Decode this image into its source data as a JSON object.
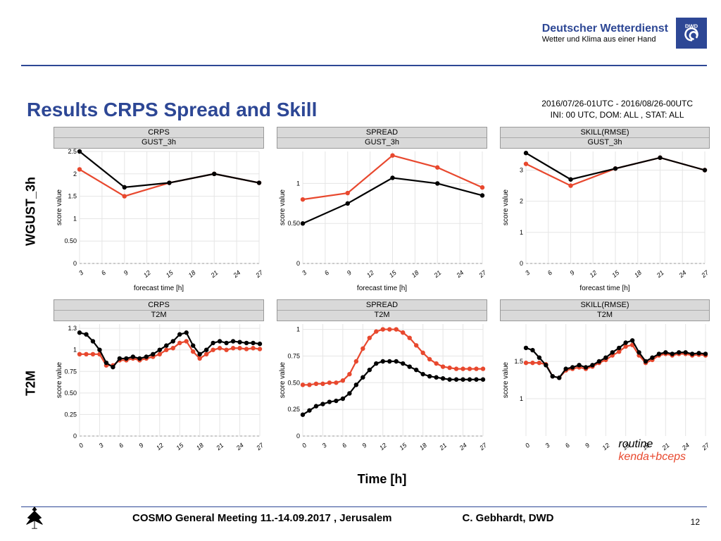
{
  "brand": {
    "title": "Deutscher Wetterdienst",
    "subtitle": "Wetter und Klima aus einer Hand",
    "logo_text": "DWD",
    "logo_bg": "#2d4795",
    "logo_fg": "#ffffff"
  },
  "title": "Results CRPS Spread and Skill",
  "subtitle_line1": "2016/07/26-01UTC - 2016/08/26-00UTC",
  "subtitle_line2": "INI: 00 UTC, DOM:  ALL , STAT: ALL",
  "row_labels": [
    "WGUST_3h",
    "T2M"
  ],
  "time_axis_label": "Time [h]",
  "panel_headers": {
    "col1": "CRPS",
    "col2": "SPREAD",
    "col3": "SKILL(RMSE)",
    "row1_sub": "GUST_3h",
    "row2_sub": "T2M"
  },
  "ylabel": "score value",
  "xlabel": "forecast time [h]",
  "series_colors": {
    "routine": "#000000",
    "kenda": "#e8482e"
  },
  "legend": {
    "routine": "routine",
    "kenda": "kenda+bceps"
  },
  "panels": {
    "r1c1": {
      "xlim": [
        3,
        27
      ],
      "ylim": [
        0,
        2.5
      ],
      "yticks": [
        0.0,
        0.5,
        1.0,
        1.5,
        2.0,
        2.5
      ],
      "xticks": [
        3,
        6,
        9,
        12,
        15,
        18,
        21,
        24,
        27
      ],
      "routine": {
        "x": [
          3,
          9,
          15,
          21,
          27
        ],
        "y": [
          2.5,
          1.7,
          1.8,
          2.0,
          1.8
        ]
      },
      "kenda": {
        "x": [
          3,
          9,
          15,
          21,
          27
        ],
        "y": [
          2.1,
          1.5,
          1.8,
          2.0,
          1.8
        ]
      }
    },
    "r1c2": {
      "xlim": [
        3,
        27
      ],
      "ylim": [
        0,
        1.4
      ],
      "yticks": [
        0.0,
        0.5,
        1.0
      ],
      "xticks": [
        3,
        6,
        9,
        12,
        15,
        18,
        21,
        24,
        27
      ],
      "routine": {
        "x": [
          3,
          9,
          15,
          21,
          27
        ],
        "y": [
          0.5,
          0.75,
          1.07,
          1.0,
          0.85
        ]
      },
      "kenda": {
        "x": [
          3,
          9,
          15,
          21,
          27
        ],
        "y": [
          0.8,
          0.88,
          1.35,
          1.2,
          0.95
        ]
      }
    },
    "r1c3": {
      "xlim": [
        3,
        27
      ],
      "ylim": [
        0,
        3.6
      ],
      "yticks": [
        0,
        1,
        2,
        3
      ],
      "xticks": [
        3,
        6,
        9,
        12,
        15,
        18,
        21,
        24,
        27
      ],
      "routine": {
        "x": [
          3,
          9,
          15,
          21,
          27
        ],
        "y": [
          3.55,
          2.7,
          3.05,
          3.4,
          3.0
        ]
      },
      "kenda": {
        "x": [
          3,
          9,
          15,
          21,
          27
        ],
        "y": [
          3.2,
          2.5,
          3.05,
          3.4,
          3.0
        ]
      }
    },
    "r2c1": {
      "xlim": [
        0,
        27
      ],
      "ylim": [
        0,
        1.3
      ],
      "yticks": [
        0.0,
        0.25,
        0.5,
        0.75,
        1.0,
        1.25
      ],
      "xticks": [
        0,
        3,
        6,
        9,
        12,
        15,
        18,
        21,
        24,
        27
      ],
      "routine": {
        "x": [
          0,
          1,
          2,
          3,
          4,
          5,
          6,
          7,
          8,
          9,
          10,
          11,
          12,
          13,
          14,
          15,
          16,
          17,
          18,
          19,
          20,
          21,
          22,
          23,
          24,
          25,
          26,
          27
        ],
        "y": [
          1.2,
          1.18,
          1.1,
          1.0,
          0.85,
          0.8,
          0.9,
          0.9,
          0.92,
          0.9,
          0.92,
          0.95,
          1.0,
          1.05,
          1.1,
          1.18,
          1.2,
          1.05,
          0.95,
          1.0,
          1.08,
          1.1,
          1.08,
          1.1,
          1.09,
          1.08,
          1.08,
          1.07
        ]
      },
      "kenda": {
        "x": [
          0,
          1,
          2,
          3,
          4,
          5,
          6,
          7,
          8,
          9,
          10,
          11,
          12,
          13,
          14,
          15,
          16,
          17,
          18,
          19,
          20,
          21,
          22,
          23,
          24,
          25,
          26,
          27
        ],
        "y": [
          0.95,
          0.95,
          0.95,
          0.95,
          0.82,
          0.82,
          0.88,
          0.88,
          0.9,
          0.88,
          0.9,
          0.92,
          0.95,
          1.0,
          1.02,
          1.08,
          1.1,
          0.98,
          0.9,
          0.95,
          1.0,
          1.02,
          1.0,
          1.02,
          1.02,
          1.01,
          1.02,
          1.01
        ]
      }
    },
    "r2c2": {
      "xlim": [
        0,
        27
      ],
      "ylim": [
        0,
        1.05
      ],
      "yticks": [
        0.0,
        0.25,
        0.5,
        0.75,
        1.0
      ],
      "xticks": [
        0,
        3,
        6,
        9,
        12,
        15,
        18,
        21,
        24,
        27
      ],
      "routine": {
        "x": [
          0,
          1,
          2,
          3,
          4,
          5,
          6,
          7,
          8,
          9,
          10,
          11,
          12,
          13,
          14,
          15,
          16,
          17,
          18,
          19,
          20,
          21,
          22,
          23,
          24,
          25,
          26,
          27
        ],
        "y": [
          0.2,
          0.24,
          0.28,
          0.3,
          0.32,
          0.33,
          0.35,
          0.4,
          0.48,
          0.55,
          0.62,
          0.68,
          0.7,
          0.7,
          0.7,
          0.68,
          0.65,
          0.62,
          0.58,
          0.56,
          0.55,
          0.54,
          0.53,
          0.53,
          0.53,
          0.53,
          0.53,
          0.53
        ]
      },
      "kenda": {
        "x": [
          0,
          1,
          2,
          3,
          4,
          5,
          6,
          7,
          8,
          9,
          10,
          11,
          12,
          13,
          14,
          15,
          16,
          17,
          18,
          19,
          20,
          21,
          22,
          23,
          24,
          25,
          26,
          27
        ],
        "y": [
          0.48,
          0.48,
          0.49,
          0.49,
          0.5,
          0.5,
          0.52,
          0.58,
          0.7,
          0.82,
          0.92,
          0.98,
          1.0,
          1.0,
          1.0,
          0.97,
          0.92,
          0.85,
          0.78,
          0.72,
          0.68,
          0.65,
          0.64,
          0.63,
          0.63,
          0.63,
          0.63,
          0.63
        ]
      }
    },
    "r2c3": {
      "xlim": [
        0,
        27
      ],
      "ylim": [
        0.5,
        2.0
      ],
      "yticks": [
        1.0,
        1.5
      ],
      "xticks": [
        0,
        3,
        6,
        9,
        12,
        15,
        18,
        21,
        24,
        27
      ],
      "routine": {
        "x": [
          0,
          1,
          2,
          3,
          4,
          5,
          6,
          7,
          8,
          9,
          10,
          11,
          12,
          13,
          14,
          15,
          16,
          17,
          18,
          19,
          20,
          21,
          22,
          23,
          24,
          25,
          26,
          27
        ],
        "y": [
          1.68,
          1.65,
          1.55,
          1.45,
          1.3,
          1.28,
          1.4,
          1.42,
          1.45,
          1.42,
          1.45,
          1.5,
          1.55,
          1.62,
          1.68,
          1.75,
          1.78,
          1.62,
          1.5,
          1.55,
          1.6,
          1.62,
          1.6,
          1.62,
          1.62,
          1.6,
          1.61,
          1.6
        ]
      },
      "kenda": {
        "x": [
          0,
          1,
          2,
          3,
          4,
          5,
          6,
          7,
          8,
          9,
          10,
          11,
          12,
          13,
          14,
          15,
          16,
          17,
          18,
          19,
          20,
          21,
          22,
          23,
          24,
          25,
          26,
          27
        ],
        "y": [
          1.48,
          1.48,
          1.48,
          1.46,
          1.3,
          1.28,
          1.38,
          1.4,
          1.42,
          1.4,
          1.43,
          1.48,
          1.52,
          1.58,
          1.63,
          1.7,
          1.72,
          1.58,
          1.48,
          1.52,
          1.58,
          1.6,
          1.58,
          1.6,
          1.6,
          1.58,
          1.59,
          1.58
        ]
      }
    }
  },
  "style": {
    "line_width": 2.2,
    "marker_r": 3.2,
    "grid_color": "#e5e5e5",
    "axis_color": "#555",
    "tick_font": 9,
    "header_bg": "#d9d9d9"
  },
  "footer": {
    "meeting": "COSMO General Meeting  11.-14.09.2017 , Jerusalem",
    "author": "C. Gebhardt, DWD",
    "page": "12"
  }
}
